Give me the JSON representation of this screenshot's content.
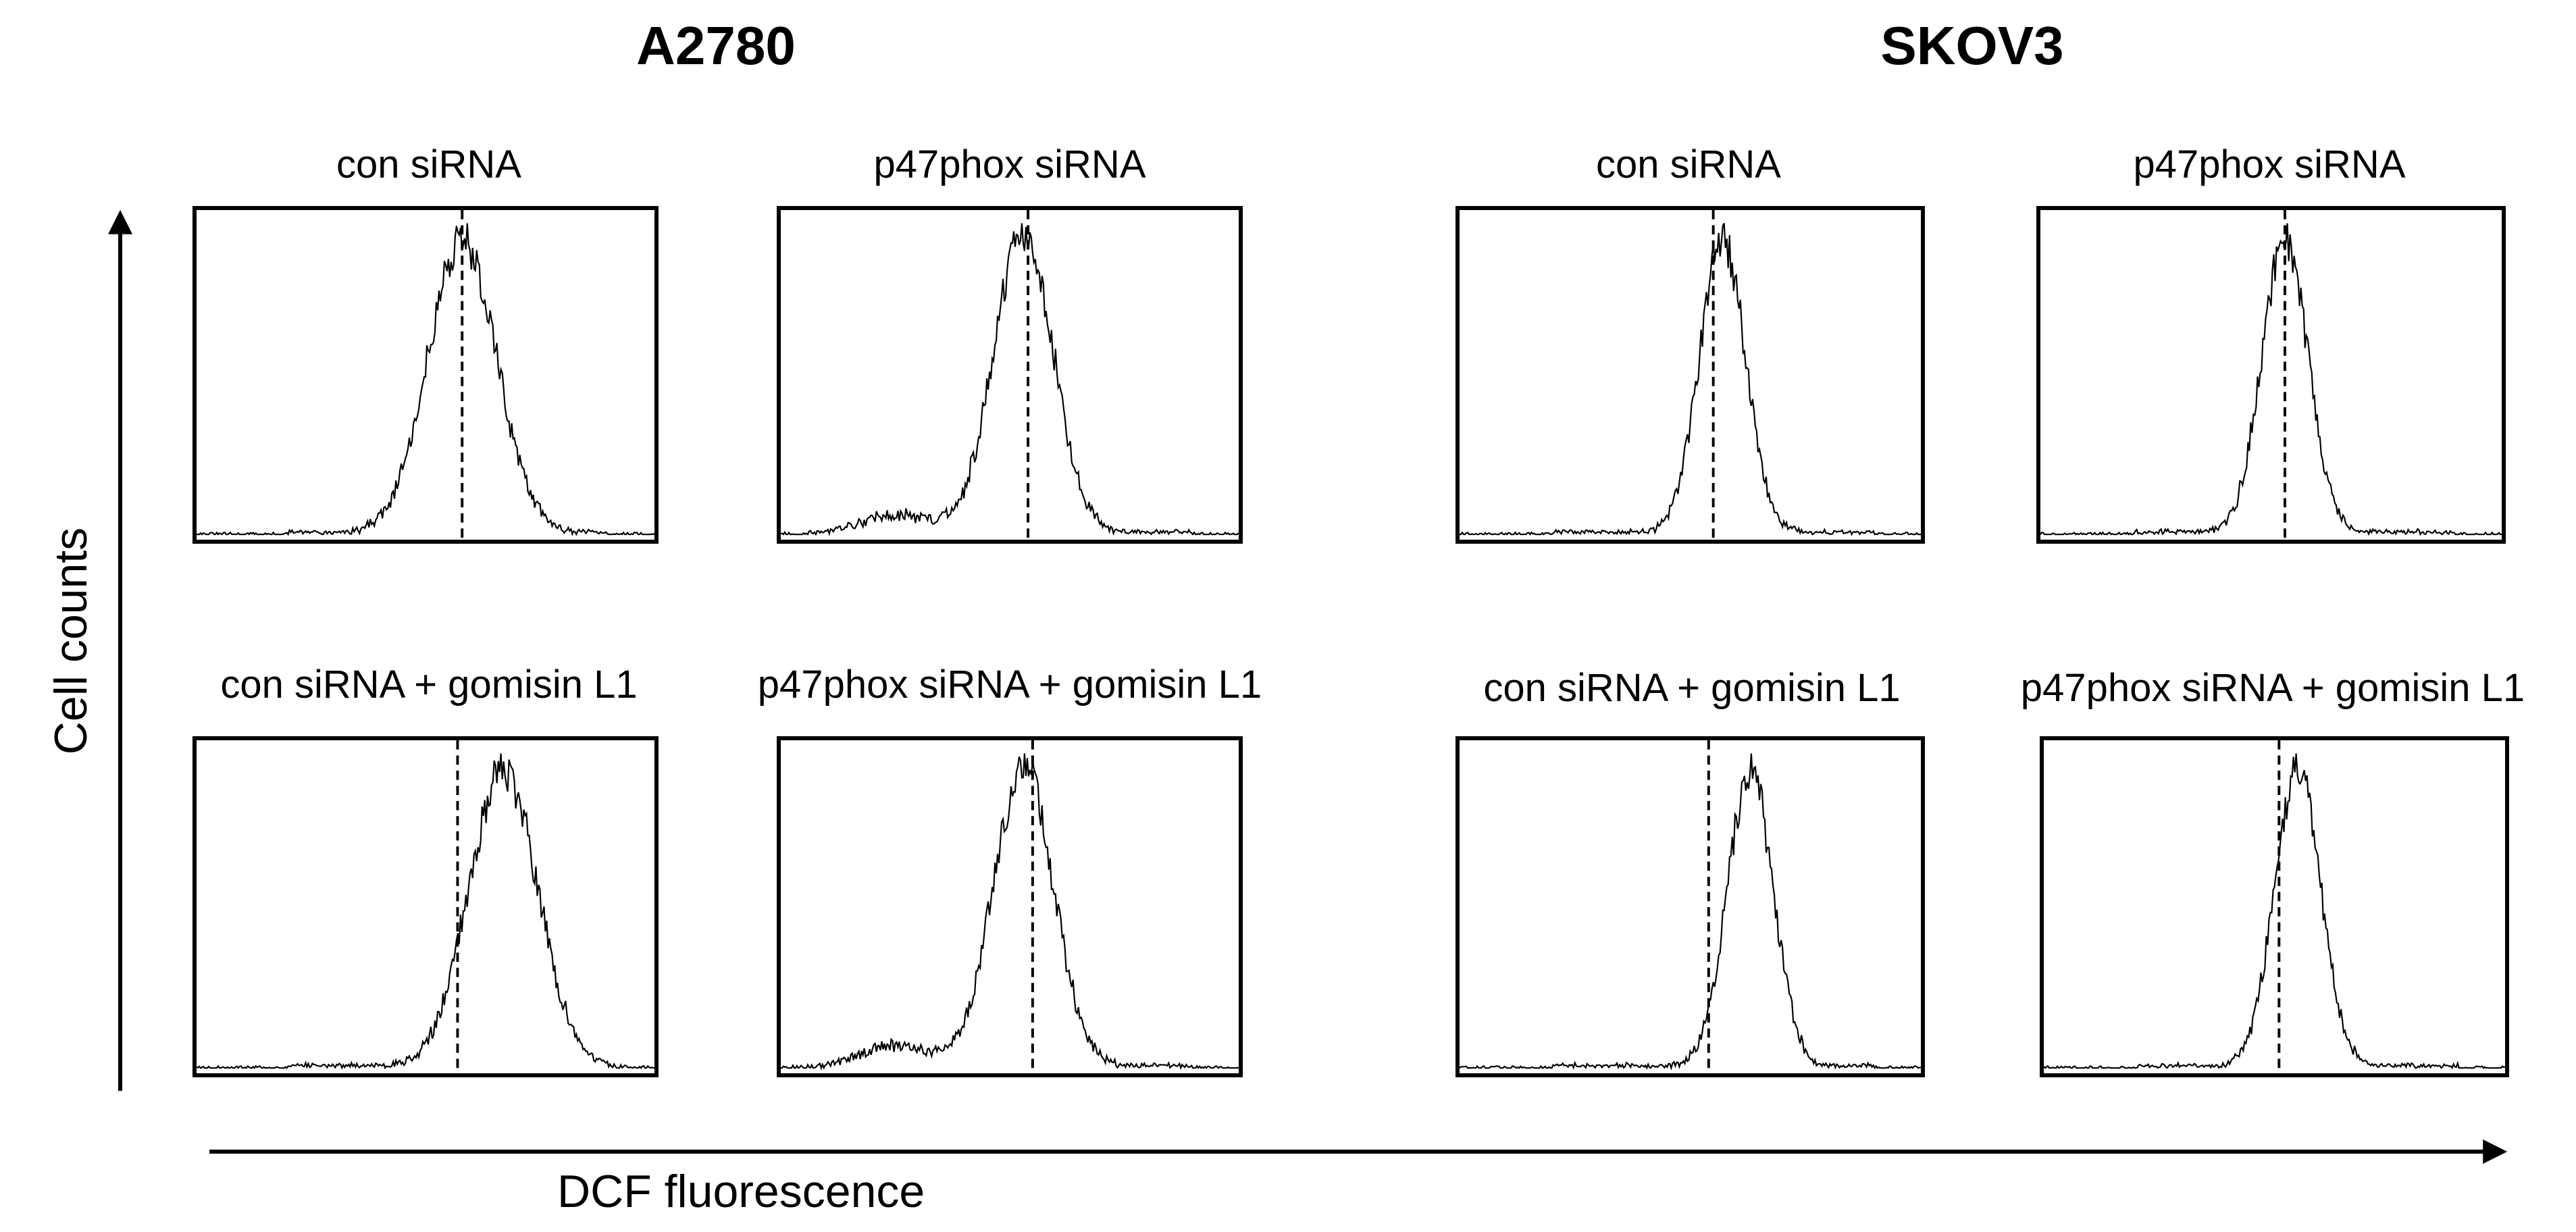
{
  "groups": [
    {
      "name": "A2780"
    },
    {
      "name": "SKOV3"
    }
  ],
  "axes": {
    "ylabel": "Cell counts",
    "xlabel": "DCF fluorescence"
  },
  "chart_data": {
    "type": "histogram-grid",
    "xlabel": "DCF fluorescence",
    "ylabel": "Cell counts",
    "xlim": [
      0,
      1
    ],
    "ylim": [
      0,
      1
    ],
    "panels": [
      {
        "group": "A2780",
        "title": "con siRNA",
        "peak_x": 0.58,
        "width": 0.075,
        "marker_x": 0.58,
        "shoulder": 0.0
      },
      {
        "group": "A2780",
        "title": "p47phox siRNA",
        "peak_x": 0.53,
        "width": 0.065,
        "marker_x": 0.54,
        "shoulder": 0.06
      },
      {
        "group": "SKOV3",
        "title": "con siRNA",
        "peak_x": 0.57,
        "width": 0.05,
        "marker_x": 0.55,
        "shoulder": 0.0
      },
      {
        "group": "SKOV3",
        "title": "p47phox siRNA",
        "peak_x": 0.53,
        "width": 0.05,
        "marker_x": 0.53,
        "shoulder": 0.0
      },
      {
        "group": "A2780",
        "title": "con siRNA + gomisin L1",
        "peak_x": 0.67,
        "width": 0.075,
        "marker_x": 0.57,
        "shoulder": 0.0
      },
      {
        "group": "A2780",
        "title": "p47phox siRNA + gomisin L1",
        "peak_x": 0.53,
        "width": 0.065,
        "marker_x": 0.55,
        "shoulder": 0.07
      },
      {
        "group": "SKOV3",
        "title": "con siRNA + gomisin L1",
        "peak_x": 0.63,
        "width": 0.05,
        "marker_x": 0.54,
        "shoulder": 0.0
      },
      {
        "group": "SKOV3",
        "title": "p47phox siRNA + gomisin L1",
        "peak_x": 0.55,
        "width": 0.05,
        "marker_x": 0.51,
        "shoulder": 0.0
      }
    ]
  }
}
